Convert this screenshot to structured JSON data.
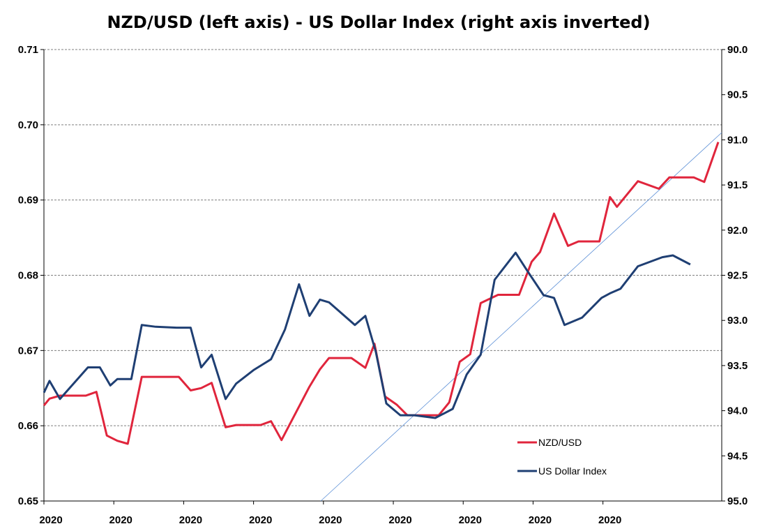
{
  "chart_data": {
    "type": "line",
    "title": "NZD/USD (left axis) - US Dollar Index (right axis inverted)",
    "xlabel": "",
    "ylabel_left": "",
    "ylabel_right": "",
    "x_tick_labels": [
      "2020",
      "2020",
      "2020",
      "2020",
      "2020",
      "2020",
      "2020",
      "2020",
      "2020"
    ],
    "left_axis": {
      "min": 0.65,
      "max": 0.71,
      "ticks": [
        "0.65",
        "0.66",
        "0.67",
        "0.68",
        "0.69",
        "0.70",
        "0.71"
      ]
    },
    "right_axis": {
      "min": 90.0,
      "max": 95.0,
      "inverted": true,
      "ticks": [
        "90.0",
        "90.5",
        "91.0",
        "91.5",
        "92.0",
        "92.5",
        "93.0",
        "93.5",
        "94.0",
        "94.5",
        "95.0"
      ]
    },
    "grid": true,
    "legend_position": "bottom-right",
    "series": [
      {
        "name": "NZD/USD",
        "axis": "left",
        "color": "#e0253c",
        "x": [
          0.0,
          0.08,
          0.23,
          0.6,
          0.75,
          0.9,
          1.05,
          1.2,
          1.4,
          1.55,
          1.93,
          2.1,
          2.25,
          2.4,
          2.6,
          2.75,
          2.93,
          3.1,
          3.25,
          3.4,
          3.8,
          3.95,
          4.08,
          4.25,
          4.4,
          4.6,
          4.73,
          4.88,
          5.05,
          5.2,
          5.45,
          5.65,
          5.8,
          5.95,
          6.1,
          6.25,
          6.5,
          6.65,
          6.8,
          6.98,
          7.1,
          7.3,
          7.5,
          7.65,
          7.8,
          7.95,
          8.1,
          8.2,
          8.5,
          8.8,
          8.95,
          9.1,
          9.3,
          9.45,
          9.65
        ],
        "values": [
          0.6627,
          0.6636,
          0.664,
          0.664,
          0.6645,
          0.6587,
          0.658,
          0.6576,
          0.6665,
          0.6665,
          0.6665,
          0.6647,
          0.665,
          0.6657,
          0.6598,
          0.6601,
          0.6601,
          0.6601,
          0.6606,
          0.6581,
          0.6652,
          0.6675,
          0.669,
          0.669,
          0.669,
          0.6677,
          0.6709,
          0.6639,
          0.6628,
          0.6614,
          0.6614,
          0.6614,
          0.6631,
          0.6685,
          0.6695,
          0.6763,
          0.6774,
          0.6774,
          0.6774,
          0.6818,
          0.6831,
          0.6882,
          0.6839,
          0.6845,
          0.6845,
          0.6845,
          0.6904,
          0.6891,
          0.6925,
          0.6915,
          0.693,
          0.693,
          0.693,
          0.6924,
          0.6977
        ]
      },
      {
        "name": "US Dollar Index",
        "axis": "right",
        "color": "#1f3f73",
        "x": [
          0.0,
          0.08,
          0.23,
          0.63,
          0.8,
          0.95,
          1.05,
          1.25,
          1.4,
          1.6,
          1.9,
          2.1,
          2.25,
          2.4,
          2.6,
          2.75,
          3.0,
          3.25,
          3.45,
          3.65,
          3.8,
          3.95,
          4.08,
          4.45,
          4.6,
          4.75,
          4.9,
          5.1,
          5.3,
          5.6,
          5.85,
          6.05,
          6.25,
          6.45,
          6.75,
          6.9,
          7.15,
          7.3,
          7.45,
          7.7,
          7.98,
          8.1,
          8.25,
          8.5,
          8.85,
          9.0,
          9.25
        ],
        "values": [
          93.8,
          93.67,
          93.87,
          93.52,
          93.52,
          93.72,
          93.65,
          93.65,
          93.05,
          93.07,
          93.08,
          93.08,
          93.52,
          93.38,
          93.87,
          93.7,
          93.55,
          93.43,
          93.1,
          92.6,
          92.95,
          92.77,
          92.8,
          93.05,
          92.95,
          93.35,
          93.92,
          94.05,
          94.05,
          94.08,
          93.98,
          93.6,
          93.38,
          92.55,
          92.25,
          92.43,
          92.72,
          92.75,
          93.05,
          92.97,
          92.75,
          92.7,
          92.65,
          92.4,
          92.3,
          92.28,
          92.38
        ]
      }
    ]
  }
}
